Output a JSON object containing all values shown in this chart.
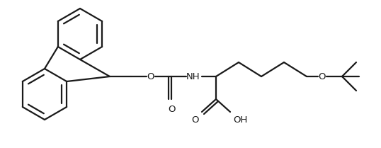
{
  "background_color": "#ffffff",
  "line_color": "#1a1a1a",
  "line_width": 1.6,
  "font_size": 8.5,
  "figsize": [
    5.38,
    2.09
  ],
  "dpi": 100,
  "xlim": [
    0,
    5.38
  ],
  "ylim": [
    0,
    2.09
  ]
}
